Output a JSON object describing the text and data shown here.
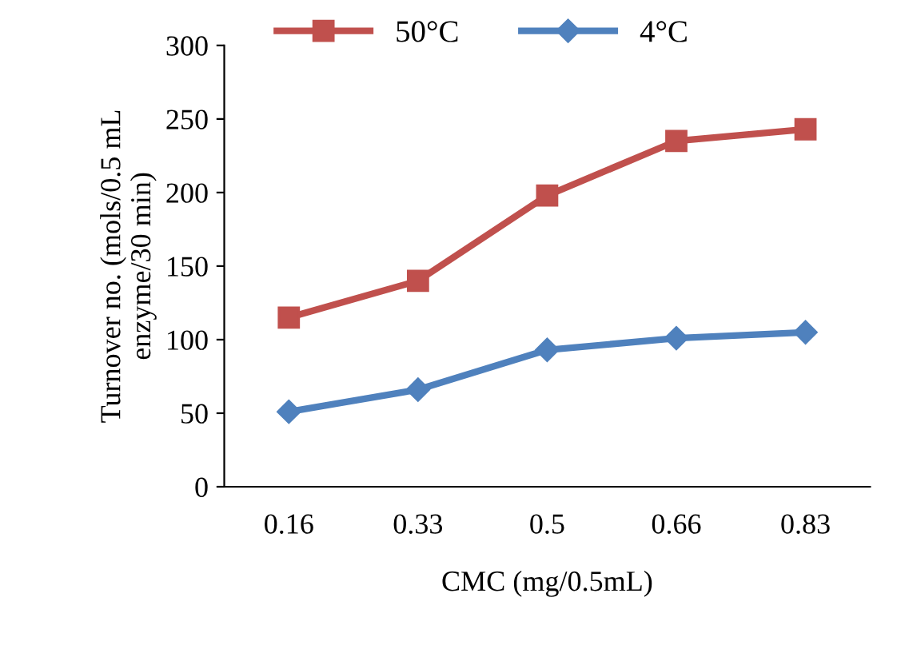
{
  "chart_data": {
    "type": "line",
    "xlabel": "CMC (mg/0.5mL)",
    "ylabel": "Turnover no. (mols/0.5 mL\nenzyme/30 min)",
    "categories": [
      "0.16",
      "0.33",
      "0.5",
      "0.66",
      "0.83"
    ],
    "series": [
      {
        "name": "50°C",
        "color": "#c0504d",
        "marker": "square",
        "values": [
          115,
          140,
          198,
          235,
          243
        ]
      },
      {
        "name": "4°C",
        "color": "#4f81bd",
        "marker": "diamond",
        "values": [
          51,
          66,
          93,
          101,
          105
        ]
      }
    ],
    "ylim": [
      0,
      300
    ],
    "yticks": [
      0,
      50,
      100,
      150,
      200,
      250,
      300
    ],
    "grid": false,
    "legend": "top",
    "line_style": "solid"
  }
}
